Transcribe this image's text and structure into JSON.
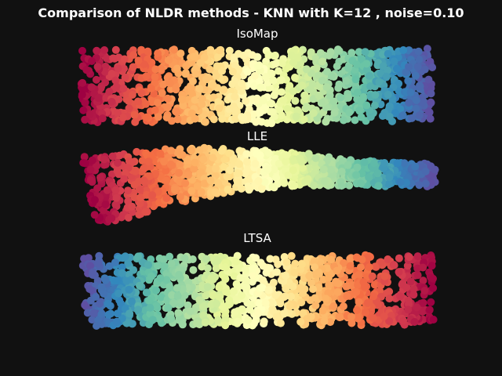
{
  "title": "Comparison of NLDR methods - KNN with K=12 , noise=0.10",
  "chart_data": [
    {
      "type": "scatter",
      "title": "IsoMap",
      "colormap": "Spectral",
      "axes": "off",
      "grid": false,
      "color_direction": "left-to-right red to violet",
      "shape": "rectangle",
      "x_range": [
        0,
        1
      ],
      "y_range": [
        0,
        1
      ]
    },
    {
      "type": "scatter",
      "title": "LLE",
      "colormap": "Spectral",
      "axes": "off",
      "grid": false,
      "color_direction": "left-to-right red to violet",
      "shape": "curved band",
      "x_range": [
        0,
        1
      ],
      "y_range": [
        0,
        1
      ]
    },
    {
      "type": "scatter",
      "title": "LTSA",
      "colormap": "Spectral",
      "axes": "off",
      "grid": false,
      "color_direction": "left-to-right violet to red",
      "shape": "rectangle",
      "x_range": [
        0,
        1
      ],
      "y_range": [
        0,
        1
      ]
    }
  ]
}
